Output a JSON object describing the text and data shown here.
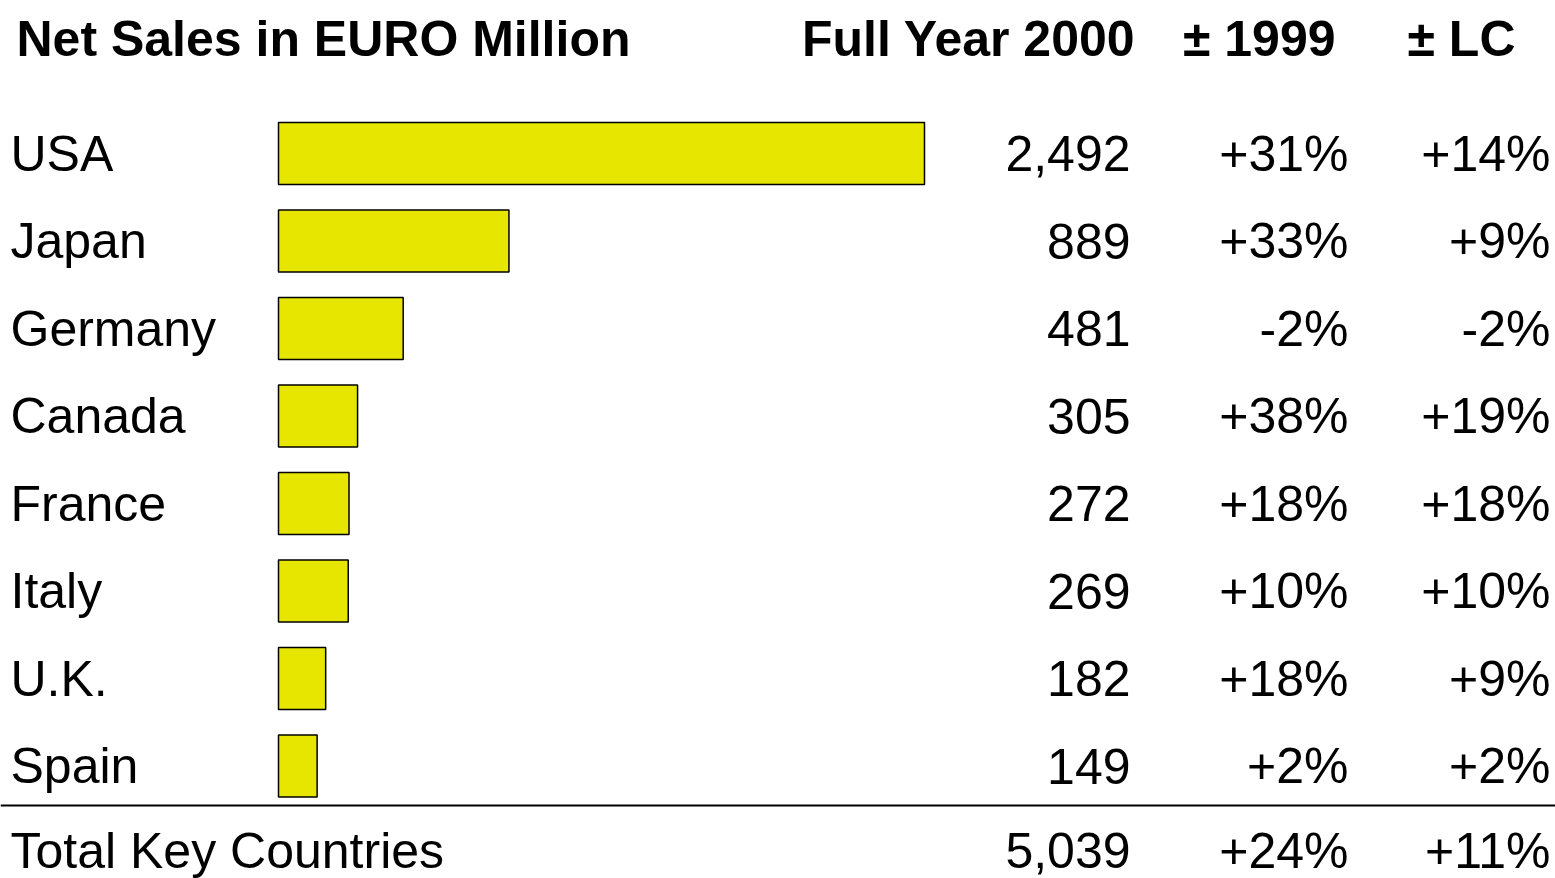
{
  "chart_data": {
    "type": "bar",
    "orientation": "horizontal",
    "title": "Net Sales in EURO Million",
    "categories": [
      "USA",
      "Japan",
      "Germany",
      "Canada",
      "France",
      "Italy",
      "U.K.",
      "Spain"
    ],
    "values": [
      2492,
      889,
      481,
      305,
      272,
      269,
      182,
      149
    ],
    "value_labels": [
      "2,492",
      "889",
      "481",
      "305",
      "272",
      "269",
      "182",
      "149"
    ],
    "color": "#e6e600",
    "annotations": [
      "Full Year 2000",
      "± 1999",
      "± LC",
      "+31%",
      "+14%",
      "+33%",
      "+9%",
      "-2%",
      "-2%",
      "+38%",
      "+19%",
      "+18%",
      "+18%",
      "+10%",
      "+10%",
      "+18%",
      "+9%",
      "+2%",
      "+2%",
      "Total Key Countries",
      "5,039",
      "+24%",
      "+11%"
    ],
    "grid": false
  }
}
